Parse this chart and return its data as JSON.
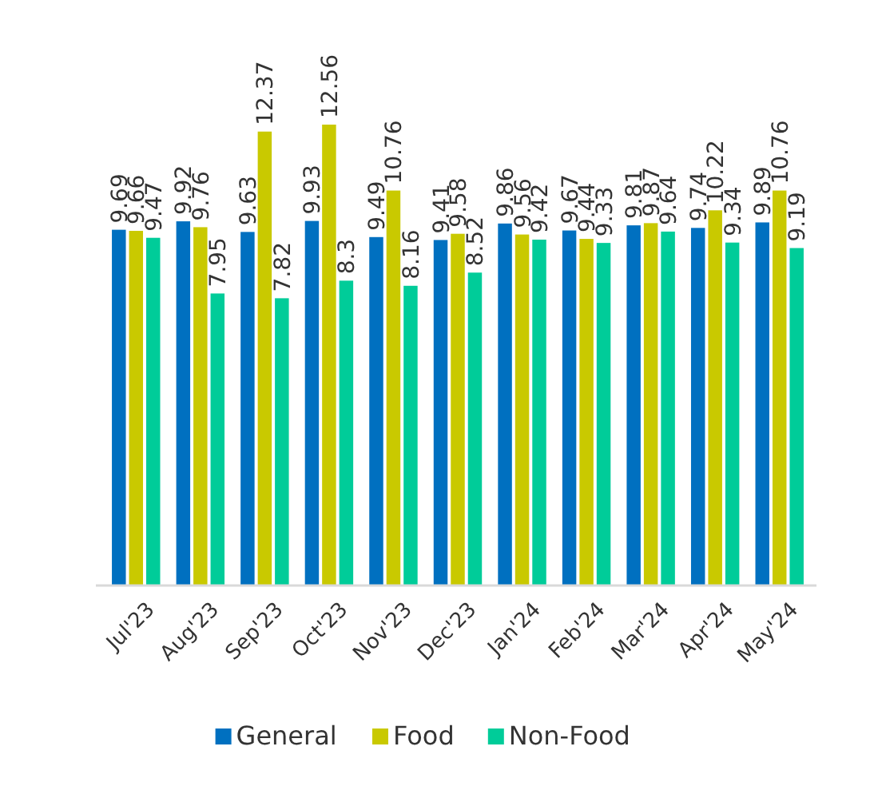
{
  "chart_data": {
    "type": "bar",
    "categories": [
      "Jul'23",
      "Aug'23",
      "Sep'23",
      "Oct'23",
      "Nov'23",
      "Dec'23",
      "Jan'24",
      "Feb'24",
      "Mar'24",
      "Apr'24",
      "May'24"
    ],
    "series": [
      {
        "name": "General",
        "color": "#0070c0",
        "values": [
          9.69,
          9.92,
          9.63,
          9.93,
          9.49,
          9.41,
          9.86,
          9.67,
          9.81,
          9.74,
          9.89
        ]
      },
      {
        "name": "Food",
        "color": "#c9c900",
        "values": [
          9.66,
          9.76,
          12.37,
          12.56,
          10.76,
          9.58,
          9.56,
          9.44,
          9.87,
          10.22,
          10.76
        ]
      },
      {
        "name": "Non-Food",
        "color": "#00cc99",
        "values": [
          9.47,
          7.95,
          7.82,
          8.3,
          8.16,
          8.52,
          9.42,
          9.33,
          9.64,
          9.34,
          9.19
        ]
      }
    ],
    "data_labels": true,
    "legend": "bottom"
  }
}
